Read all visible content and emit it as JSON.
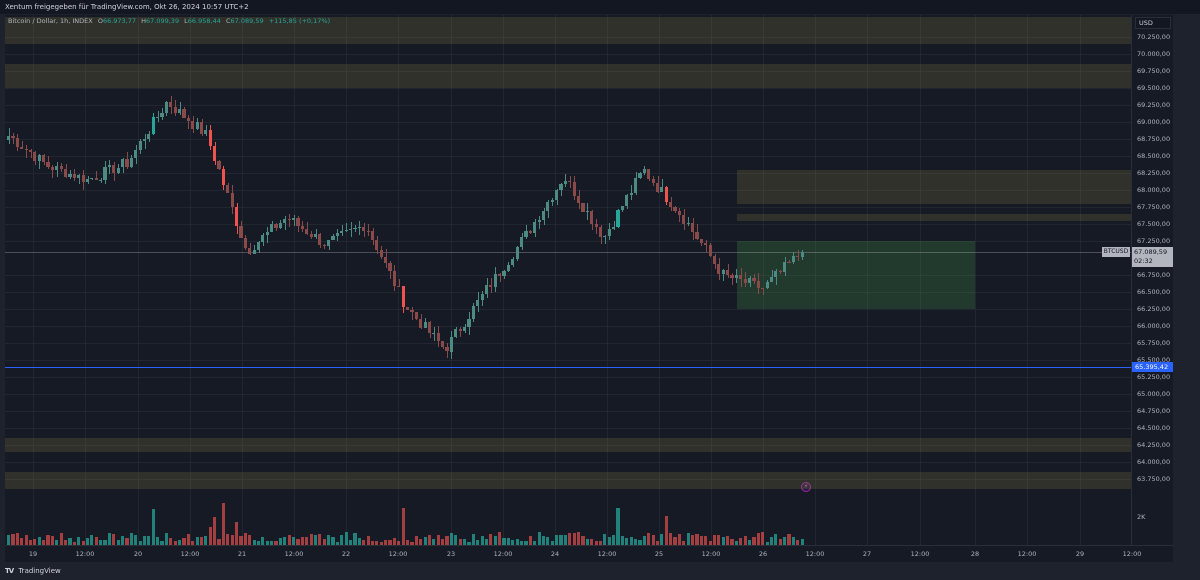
{
  "header": {
    "share_text": "Xentum freigegeben für TradingView.com, Okt 26, 2024 10:57 UTC+2"
  },
  "legend": {
    "symbol": "Bitcoin / Dollar, 1h, INDEX",
    "open_label": "O",
    "open": "66.973,77",
    "high_label": "H",
    "high": "67.099,39",
    "low_label": "L",
    "low": "66.958,44",
    "close_label": "C",
    "close": "67.089,59",
    "change": "+115,85 (+0,17%)"
  },
  "price_axis": {
    "currency": "USD",
    "ticks": [
      "70.250,00",
      "70.000,00",
      "69.750,00",
      "69.500,00",
      "69.250,00",
      "69.000,00",
      "68.750,00",
      "68.500,00",
      "68.250,00",
      "68.000,00",
      "67.750,00",
      "67.500,00",
      "67.250,00",
      "66.750,00",
      "66.500,00",
      "66.250,00",
      "66.000,00",
      "65.750,00",
      "65.500,00",
      "65.250,00",
      "65.000,00",
      "64.750,00",
      "64.500,00",
      "64.250,00",
      "64.000,00",
      "63.750,00"
    ],
    "last_price": "67.089,59",
    "countdown": "02:32",
    "symbol_tag": "BTCUSD",
    "hline_price": "65.395,42",
    "volume_tick": "2K"
  },
  "time_axis": {
    "ticks": [
      "19",
      "12:00",
      "20",
      "12:00",
      "21",
      "12:00",
      "22",
      "12:00",
      "23",
      "12:00",
      "24",
      "12:00",
      "25",
      "12:00",
      "26",
      "12:00",
      "27",
      "12:00",
      "28",
      "12:00",
      "29",
      "12:00"
    ]
  },
  "footer": {
    "brand": "TradingView"
  },
  "colors": {
    "up": "#26a69a",
    "down": "#ef5350",
    "up_faded": "#4e8a84",
    "down_faded": "#8a4a4a",
    "zone": "#786e3c",
    "demand_zone": "#4caf50",
    "hline": "#2962ff"
  },
  "chart_data": {
    "type": "candlestick",
    "title": "Bitcoin / Dollar, 1h, INDEX",
    "xlabel": "",
    "ylabel": "USD",
    "ylim": [
      63600,
      70400
    ],
    "x_range": [
      "Oct 19",
      "Oct 29 12:00"
    ],
    "ohlc_last": {
      "open": 66973.77,
      "high": 67099.39,
      "low": 66958.44,
      "close": 67089.59
    },
    "change": 115.85,
    "change_pct": 0.17,
    "approx_price_path": [
      {
        "t": "Oct 19 00:00",
        "price": 68800
      },
      {
        "t": "Oct 19 06:00",
        "price": 68350
      },
      {
        "t": "Oct 19 18:00",
        "price": 68150
      },
      {
        "t": "Oct 20 12:00",
        "price": 68400
      },
      {
        "t": "Oct 21 02:00",
        "price": 69300
      },
      {
        "t": "Oct 21 12:00",
        "price": 68800
      },
      {
        "t": "Oct 21 20:00",
        "price": 67100
      },
      {
        "t": "Oct 22 06:00",
        "price": 67600
      },
      {
        "t": "Oct 22 20:00",
        "price": 67200
      },
      {
        "t": "Oct 23 06:00",
        "price": 67500
      },
      {
        "t": "Oct 23 18:00",
        "price": 66300
      },
      {
        "t": "Oct 23 22:00",
        "price": 65650
      },
      {
        "t": "Oct 24 06:00",
        "price": 66500
      },
      {
        "t": "Oct 24 12:00",
        "price": 67300
      },
      {
        "t": "Oct 25 00:00",
        "price": 68200
      },
      {
        "t": "Oct 25 10:00",
        "price": 67300
      },
      {
        "t": "Oct 25 16:00",
        "price": 68300
      },
      {
        "t": "Oct 25 18:00",
        "price": 67600
      },
      {
        "t": "Oct 25 20:00",
        "price": 66750
      },
      {
        "t": "Oct 26 02:00",
        "price": 66550
      },
      {
        "t": "Oct 26 10:00",
        "price": 67089.59
      }
    ],
    "horizontal_line": 65395.42,
    "zones": [
      {
        "type": "supply",
        "from": 70150,
        "to": 70550
      },
      {
        "type": "supply",
        "from": 69500,
        "to": 69850
      },
      {
        "type": "supply",
        "from": 67800,
        "to": 68300
      },
      {
        "type": "supply",
        "from": 67550,
        "to": 67650
      },
      {
        "type": "demand",
        "from": 66250,
        "to": 67250
      },
      {
        "type": "supply",
        "from": 64150,
        "to": 64350
      },
      {
        "type": "supply",
        "from": 63600,
        "to": 63850
      }
    ],
    "volume_axis_tick": "2K"
  }
}
